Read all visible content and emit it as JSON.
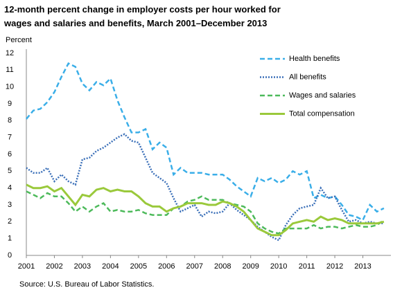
{
  "chart_data": {
    "type": "line",
    "title": "12-month percent change in employer costs per hour worked for wages and salaries and benefits, March 2001–December 2013",
    "y_label": "Percent",
    "source": "Source: U.S. Bureau of Labor Statistics.",
    "x": [
      2001,
      2001.25,
      2001.5,
      2001.75,
      2002,
      2002.25,
      2002.5,
      2002.75,
      2003,
      2003.25,
      2003.5,
      2003.75,
      2004,
      2004.25,
      2004.5,
      2004.75,
      2005,
      2005.25,
      2005.5,
      2005.75,
      2006,
      2006.25,
      2006.5,
      2006.75,
      2007,
      2007.25,
      2007.5,
      2007.75,
      2008,
      2008.25,
      2008.5,
      2008.75,
      2009,
      2009.25,
      2009.5,
      2009.75,
      2010,
      2010.25,
      2010.5,
      2010.75,
      2011,
      2011.25,
      2011.5,
      2011.75,
      2012,
      2012.25,
      2012.5,
      2012.75,
      2013,
      2013.25,
      2013.5,
      2013.75
    ],
    "xlim": [
      2001,
      2014
    ],
    "xticks": [
      2001,
      2002,
      2003,
      2004,
      2005,
      2006,
      2007,
      2008,
      2009,
      2010,
      2011,
      2012,
      2013
    ],
    "ylim": [
      0,
      12
    ],
    "yticks": [
      0,
      1,
      2,
      3,
      4,
      5,
      6,
      7,
      8,
      9,
      10,
      11,
      12
    ],
    "grid": false,
    "legend": "upper right",
    "series": [
      {
        "name": "Health benefits",
        "color": "#3aaee8",
        "line_style": "dashed",
        "values": [
          8.1,
          8.6,
          8.7,
          9.1,
          9.7,
          10.6,
          11.4,
          11.2,
          10.2,
          9.8,
          10.3,
          10.1,
          10.5,
          9.2,
          8.2,
          7.3,
          7.3,
          7.5,
          6.3,
          6.7,
          6.4,
          4.8,
          5.2,
          4.9,
          4.9,
          4.9,
          4.8,
          4.8,
          4.8,
          4.5,
          4.1,
          3.8,
          3.5,
          4.6,
          4.4,
          4.6,
          4.3,
          4.5,
          5.0,
          4.8,
          5.0,
          3.4,
          3.6,
          3.4,
          3.5,
          3.0,
          2.4,
          2.3,
          2.1,
          3.0,
          2.6,
          2.8
        ]
      },
      {
        "name": "All benefits",
        "color": "#3a6fb8",
        "line_style": "dotted",
        "values": [
          5.2,
          4.9,
          4.9,
          5.2,
          4.4,
          4.8,
          4.4,
          4.2,
          5.7,
          5.8,
          6.2,
          6.4,
          6.7,
          7.0,
          7.2,
          6.8,
          6.7,
          5.8,
          4.9,
          4.6,
          4.3,
          3.4,
          2.6,
          2.8,
          3.0,
          2.3,
          2.6,
          2.5,
          2.6,
          3.1,
          2.7,
          2.4,
          2.1,
          1.7,
          1.4,
          1.1,
          0.9,
          1.8,
          2.4,
          2.8,
          2.9,
          3.0,
          4.0,
          3.4,
          3.5,
          2.7,
          2.0,
          2.1,
          1.9,
          2.0,
          1.9,
          1.9
        ]
      },
      {
        "name": "Wages and salaries",
        "color": "#4dba5b",
        "line_style": "dashed",
        "values": [
          3.8,
          3.6,
          3.4,
          3.7,
          3.5,
          3.5,
          3.1,
          2.6,
          2.9,
          2.6,
          2.9,
          3.1,
          2.6,
          2.7,
          2.6,
          2.6,
          2.7,
          2.5,
          2.4,
          2.4,
          2.4,
          2.8,
          2.9,
          3.2,
          3.3,
          3.5,
          3.3,
          3.3,
          3.3,
          3.1,
          3.0,
          2.9,
          2.6,
          1.9,
          1.6,
          1.4,
          1.3,
          1.6,
          1.6,
          1.6,
          1.6,
          1.8,
          1.6,
          1.7,
          1.7,
          1.6,
          1.7,
          1.8,
          1.7,
          1.7,
          1.8,
          2.1
        ]
      },
      {
        "name": "Total compensation",
        "color": "#9ac93b",
        "line_style": "solid",
        "values": [
          4.2,
          4.0,
          4.0,
          4.1,
          3.8,
          4.0,
          3.5,
          3.0,
          3.6,
          3.5,
          3.9,
          4.0,
          3.8,
          3.9,
          3.8,
          3.8,
          3.5,
          3.1,
          2.9,
          2.9,
          2.6,
          2.8,
          2.9,
          3.1,
          3.1,
          3.1,
          3.0,
          3.0,
          3.2,
          3.1,
          2.9,
          2.6,
          2.1,
          1.6,
          1.4,
          1.2,
          1.2,
          1.5,
          1.9,
          2.0,
          2.1,
          2.0,
          2.3,
          2.1,
          2.2,
          2.1,
          1.9,
          1.9,
          1.9,
          1.9,
          1.9,
          2.0
        ]
      }
    ]
  }
}
